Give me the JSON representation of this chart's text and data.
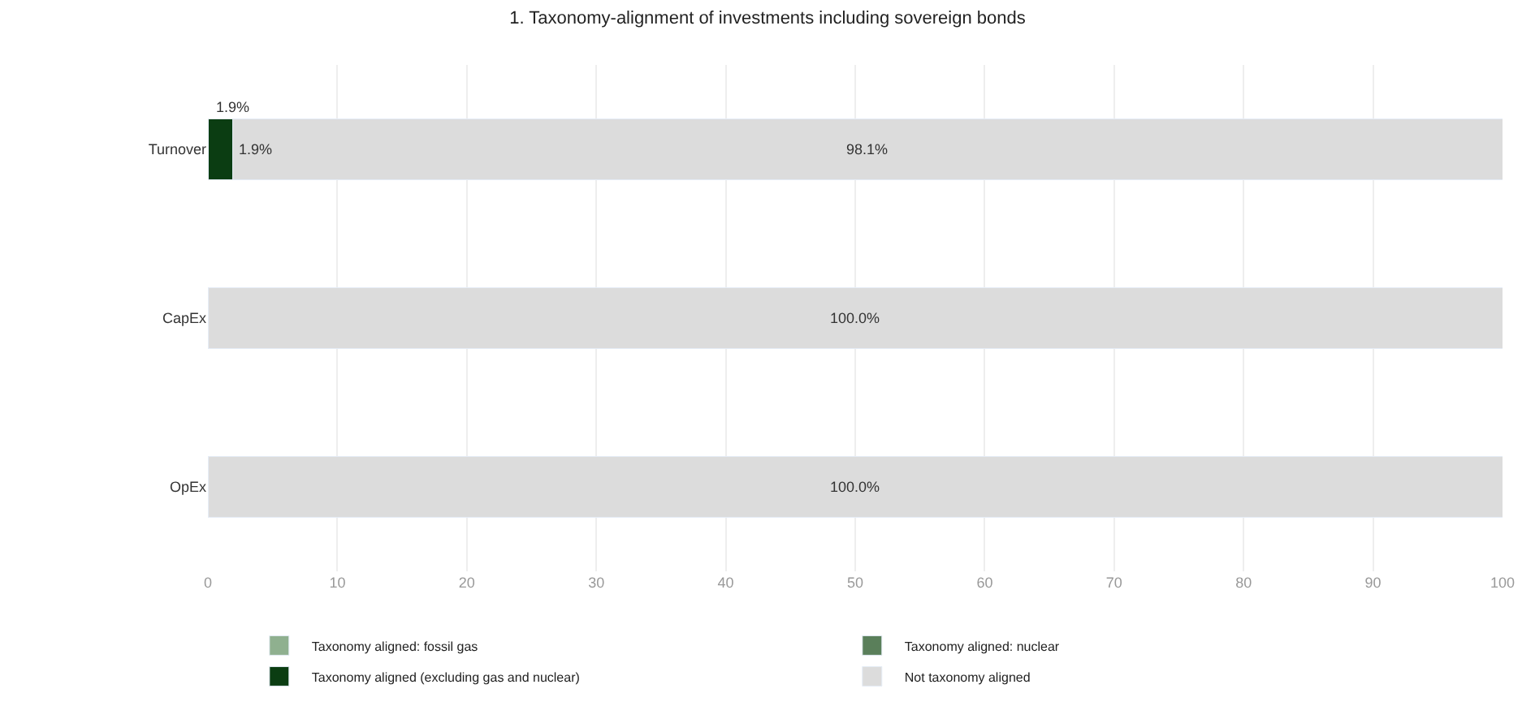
{
  "chart_data": {
    "type": "bar",
    "orientation": "horizontal",
    "stacked": true,
    "title": "1. Taxonomy-alignment of investments including sovereign bonds",
    "categories": [
      "Turnover",
      "CapEx",
      "OpEx"
    ],
    "series": [
      {
        "name": "Taxonomy aligned: fossil gas",
        "color": "#8fb08f",
        "values": [
          null,
          null,
          null
        ]
      },
      {
        "name": "Taxonomy aligned: nuclear",
        "color": "#5a7f5a",
        "values": [
          null,
          null,
          null
        ]
      },
      {
        "name": "Taxonomy aligned (excluding gas and nuclear)",
        "color": "#0b3d12",
        "values": [
          1.9,
          null,
          null
        ],
        "value_labels": [
          "1.9%",
          null,
          null
        ]
      },
      {
        "name": "Not taxonomy aligned",
        "color": "#dcdcdc",
        "values": [
          98.1,
          100,
          100
        ],
        "value_labels": [
          "98.1%",
          "100.0%",
          "100.0%"
        ]
      }
    ],
    "annotations": [
      {
        "text": "1.9%",
        "x": 1.9,
        "y": "Turnover"
      }
    ],
    "xlim": [
      0,
      100
    ],
    "xticks": [
      0,
      10,
      20,
      30,
      40,
      50,
      60,
      70,
      80,
      90,
      100
    ],
    "grid": "x",
    "legend": "bottom"
  }
}
